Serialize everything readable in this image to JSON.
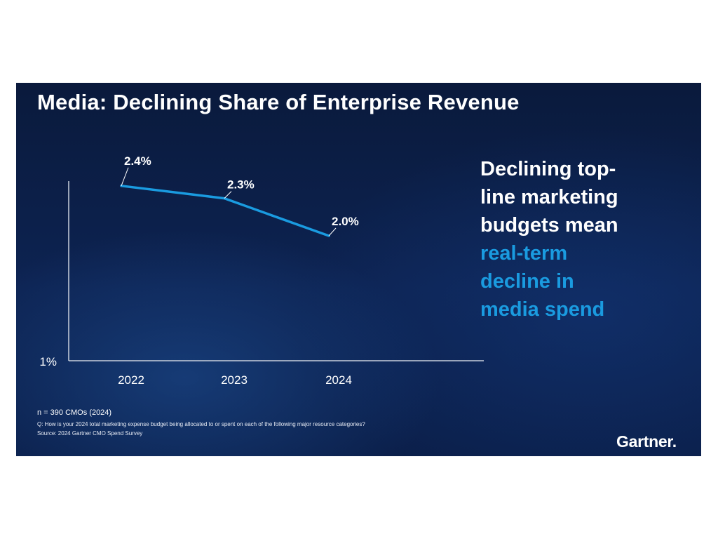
{
  "slide": {
    "title": "Media: Declining Share of Enterprise Revenue",
    "callout": {
      "white_lines": [
        "Declining top-",
        "line marketing",
        "budgets mean"
      ],
      "blue_lines": [
        "real-term",
        "decline in",
        "media spend"
      ]
    },
    "footnotes": {
      "sample": "n = 390 CMOs (2024)",
      "question": "Q: How is your 2024 total marketing expense budget being allocated to or spent on each of the following major resource categories?",
      "source": "Source: 2024 Gartner CMO Spend Survey"
    },
    "logo": "Gartner."
  },
  "colors": {
    "line": "#1a9be0",
    "axis": "#c9d0dc",
    "text": "#ffffff",
    "accent_text": "#1a9be0"
  },
  "chart_data": {
    "type": "line",
    "title": "Media: Declining Share of Enterprise Revenue",
    "categories": [
      "2022",
      "2023",
      "2024"
    ],
    "values": [
      2.4,
      2.3,
      2.0
    ],
    "data_labels": [
      "2.4%",
      "2.3%",
      "2.0%"
    ],
    "y_tick_labels": [
      "1%"
    ],
    "ylim": [
      1,
      3
    ],
    "xlabel": "",
    "ylabel": "",
    "grid": false,
    "legend": "none"
  }
}
